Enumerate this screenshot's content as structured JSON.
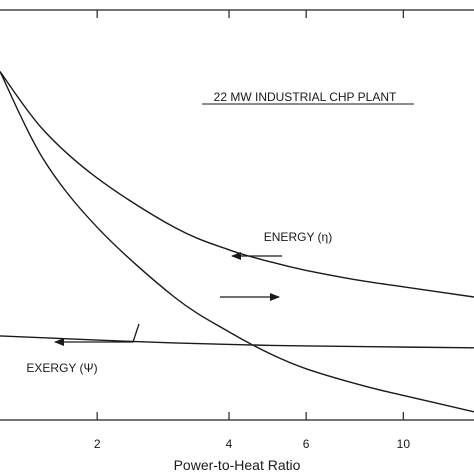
{
  "chart_data": {
    "type": "line",
    "title": "22 MW  INDUSTRIAL  CHP  PLANT",
    "xlabel": "Power-to-Heat  Ratio",
    "ylabel": "",
    "xscale": "log",
    "xlim": [
      1.2,
      14.5
    ],
    "ylim": [
      0,
      1
    ],
    "grid": false,
    "x_ticks": [
      {
        "value": 2,
        "label": "2"
      },
      {
        "value": 4,
        "label": "4"
      },
      {
        "value": 6,
        "label": "6"
      },
      {
        "value": 10,
        "label": "10"
      }
    ],
    "series": [
      {
        "name": "ENERGY (η)",
        "points": [
          [
            1.2,
            0.85
          ],
          [
            1.5,
            0.71
          ],
          [
            2.0,
            0.59
          ],
          [
            3.0,
            0.47
          ],
          [
            4.0,
            0.415
          ],
          [
            5.0,
            0.385
          ],
          [
            6.0,
            0.365
          ],
          [
            8.0,
            0.34
          ],
          [
            10.0,
            0.325
          ],
          [
            14.5,
            0.3
          ]
        ]
      },
      {
        "name": "",
        "points": [
          [
            1.2,
            0.85
          ],
          [
            1.5,
            0.64
          ],
          [
            2.0,
            0.47
          ],
          [
            3.0,
            0.3
          ],
          [
            4.0,
            0.215
          ],
          [
            5.0,
            0.16
          ],
          [
            6.0,
            0.125
          ],
          [
            8.0,
            0.085
          ],
          [
            10.0,
            0.06
          ],
          [
            14.5,
            0.02
          ]
        ]
      },
      {
        "name": "EXERGY (Ψ)",
        "points": [
          [
            1.2,
            0.205
          ],
          [
            2.0,
            0.195
          ],
          [
            3.0,
            0.188
          ],
          [
            5.0,
            0.182
          ],
          [
            8.0,
            0.179
          ],
          [
            14.5,
            0.176
          ]
        ]
      }
    ],
    "annotations": [
      {
        "text": "ENERGY (η)",
        "arrow": "left"
      },
      {
        "text": "",
        "arrow": "right"
      },
      {
        "text": "EXERGY (Ψ)",
        "arrow": "left"
      }
    ]
  }
}
